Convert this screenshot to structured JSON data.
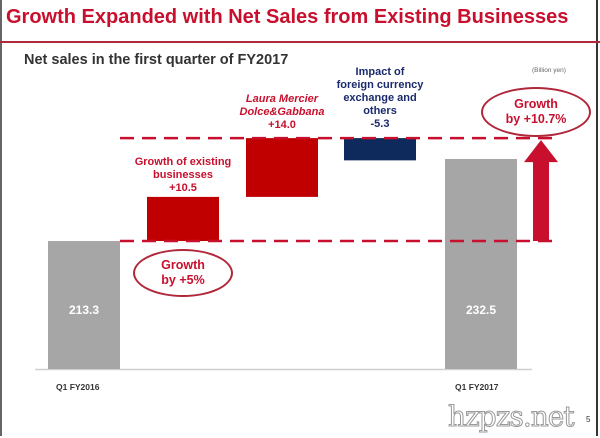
{
  "header": {
    "title": "Growth Expanded with Net Sales from Existing Businesses"
  },
  "chart_data": {
    "type": "bar",
    "subtype": "waterfall",
    "title": "Net sales in the first quarter of FY2017",
    "unit_label": "(Billion yen)",
    "categories": [
      "Q1 FY2016",
      "Growth of existing businesses",
      "Laura Mercier Dolce&Gabbana",
      "Impact of foreign currency exchange and others",
      "Q1 FY2017"
    ],
    "values": [
      213.3,
      10.5,
      14.0,
      -5.3,
      232.5
    ],
    "kinds": [
      "total",
      "increase",
      "increase",
      "decrease",
      "total"
    ],
    "x_tick_labels": [
      "Q1 FY2016",
      "Q1 FY2017"
    ],
    "bar_value_labels": [
      "213.3",
      "232.5"
    ],
    "step_labels": [
      {
        "lines": [
          "Growth of existing",
          "businesses",
          "+10.5"
        ]
      },
      {
        "lines": [
          "Laura Mercier",
          "Dolce&Gabbana",
          "+14.0"
        ]
      },
      {
        "lines": [
          "Impact of",
          "foreign currency",
          "exchange and",
          "others",
          "-5.3"
        ]
      }
    ],
    "annotations": [
      {
        "text": [
          "Growth",
          "by +5%"
        ]
      },
      {
        "text": [
          "Growth",
          "by +10.7%"
        ]
      }
    ],
    "colors": {
      "total": "#a6a6a6",
      "increase": "#c00000",
      "decrease": "#0e2a5c",
      "accent": "#c8102e"
    }
  },
  "footer": {
    "page_number": "5",
    "watermark": "hzpzs.net"
  }
}
